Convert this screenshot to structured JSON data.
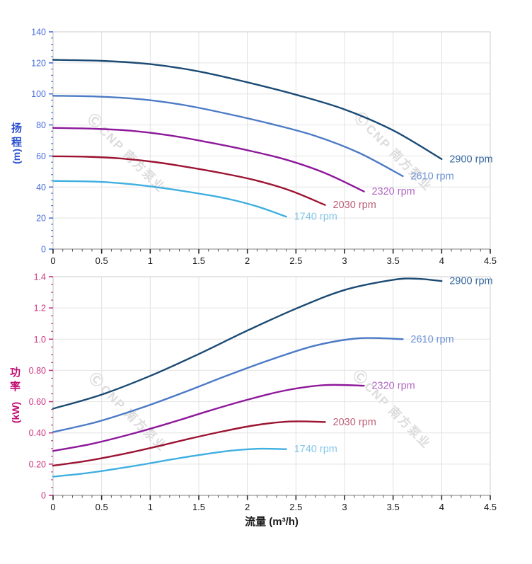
{
  "page": {
    "background": "#ffffff"
  },
  "watermark": {
    "logo_glyph": "Ⓒ",
    "text": "CNP 南方泵业",
    "color": "#dcdcdc"
  },
  "chart_data": [
    {
      "id": "head-chart",
      "type": "line",
      "title": "",
      "ylabel": "扬程",
      "ylabel_unit": "(m)",
      "xlabel": "",
      "xlim": [
        0,
        4.5
      ],
      "ylim": [
        0,
        140
      ],
      "grid": true,
      "legend_position": "curve-end-labels",
      "axis_tick_color": "#4a6fd9",
      "ylabel_color": "#2b50d2",
      "x_ticks": {
        "values": [
          0,
          0.5,
          1,
          1.5,
          2,
          2.5,
          3,
          3.5,
          4,
          4.5
        ],
        "labels": [
          "0",
          "0.5",
          "1",
          "1.5",
          "2",
          "2.5",
          "3",
          "3.5",
          "4",
          "4.5"
        ],
        "minor_step": 0.1
      },
      "y_ticks": {
        "values": [
          0,
          20,
          40,
          60,
          80,
          100,
          120,
          140
        ],
        "labels": [
          "0",
          "20",
          "40",
          "60",
          "80",
          "100",
          "120",
          "140"
        ],
        "minor_step": 4
      },
      "series": [
        {
          "name": "2900 rpm",
          "color": "#1b4a74",
          "label_color": "#35689e",
          "points": [
            [
              0,
              122
            ],
            [
              0.5,
              121.3
            ],
            [
              1,
              119.2
            ],
            [
              1.5,
              114.5
            ],
            [
              2,
              107.5
            ],
            [
              2.5,
              99.5
            ],
            [
              3,
              90
            ],
            [
              3.5,
              76.5
            ],
            [
              4,
              58
            ]
          ]
        },
        {
          "name": "2610 rpm",
          "color": "#4c7ac5",
          "label_color": "#6e93d6",
          "points": [
            [
              0,
              98.8
            ],
            [
              0.45,
              98.3
            ],
            [
              0.9,
              96.6
            ],
            [
              1.35,
              92.8
            ],
            [
              1.8,
              87.1
            ],
            [
              2.25,
              80.6
            ],
            [
              2.7,
              72.9
            ],
            [
              3.15,
              62
            ],
            [
              3.6,
              47
            ]
          ]
        },
        {
          "name": "2320 rpm",
          "color": "#8d189a",
          "label_color": "#b167c3",
          "points": [
            [
              0,
              78.1
            ],
            [
              0.4,
              77.6
            ],
            [
              0.8,
              76.3
            ],
            [
              1.2,
              73.3
            ],
            [
              1.6,
              68.8
            ],
            [
              2,
              63.7
            ],
            [
              2.4,
              57.6
            ],
            [
              2.8,
              49
            ],
            [
              3.2,
              37.1
            ]
          ]
        },
        {
          "name": "2030 rpm",
          "color": "#9c1432",
          "label_color": "#bd5f77",
          "points": [
            [
              0,
              59.8
            ],
            [
              0.35,
              59.5
            ],
            [
              0.7,
              58.4
            ],
            [
              1.05,
              56.1
            ],
            [
              1.4,
              52.7
            ],
            [
              1.75,
              48.8
            ],
            [
              2.1,
              44.1
            ],
            [
              2.45,
              37.5
            ],
            [
              2.8,
              28.4
            ]
          ]
        },
        {
          "name": "1740 rpm",
          "color": "#3fafe0",
          "label_color": "#85c7ea",
          "points": [
            [
              0,
              43.9
            ],
            [
              0.3,
              43.7
            ],
            [
              0.6,
              42.9
            ],
            [
              0.9,
              41.2
            ],
            [
              1.2,
              38.7
            ],
            [
              1.5,
              35.8
            ],
            [
              1.8,
              32.4
            ],
            [
              2.1,
              27.5
            ],
            [
              2.4,
              20.9
            ]
          ]
        }
      ]
    },
    {
      "id": "power-chart",
      "type": "line",
      "title": "",
      "ylabel": "功率",
      "ylabel_unit": "(kW)",
      "xlabel": "流量 (m³/h)",
      "xlim": [
        0,
        4.5
      ],
      "ylim": [
        0,
        1.4
      ],
      "grid": true,
      "legend_position": "curve-end-labels",
      "axis_tick_color": "#cc3380",
      "ylabel_color": "#bf0d72",
      "x_ticks": {
        "values": [
          0,
          0.5,
          1,
          1.5,
          2,
          2.5,
          3,
          3.5,
          4,
          4.5
        ],
        "labels": [
          "0",
          "0.5",
          "1",
          "1.5",
          "2",
          "2.5",
          "3",
          "3.5",
          "4",
          "4.5"
        ],
        "minor_step": 0.1
      },
      "y_ticks": {
        "values": [
          0,
          0.2,
          0.4,
          0.6,
          0.8,
          1.0,
          1.2,
          1.4
        ],
        "labels": [
          "0",
          "0.20",
          "0.40",
          "0.60",
          "0.80",
          "1.0",
          "1.2",
          "1.4"
        ],
        "minor_step": 0.05
      },
      "series": [
        {
          "name": "2900 rpm",
          "color": "#1b4a74",
          "label_color": "#35689e",
          "points": [
            [
              0,
              0.555
            ],
            [
              0.5,
              0.645
            ],
            [
              1,
              0.765
            ],
            [
              1.5,
              0.905
            ],
            [
              2,
              1.055
            ],
            [
              2.5,
              1.195
            ],
            [
              3,
              1.315
            ],
            [
              3.5,
              1.38
            ],
            [
              3.75,
              1.387
            ],
            [
              4,
              1.372
            ]
          ]
        },
        {
          "name": "2610 rpm",
          "color": "#4c7ac5",
          "label_color": "#6e93d6",
          "points": [
            [
              0,
              0.405
            ],
            [
              0.45,
              0.47
            ],
            [
              0.9,
              0.558
            ],
            [
              1.35,
              0.66
            ],
            [
              1.8,
              0.769
            ],
            [
              2.25,
              0.871
            ],
            [
              2.7,
              0.959
            ],
            [
              3.15,
              1.006
            ],
            [
              3.6,
              1.0
            ]
          ]
        },
        {
          "name": "2320 rpm",
          "color": "#8d189a",
          "label_color": "#b167c3",
          "points": [
            [
              0,
              0.284
            ],
            [
              0.4,
              0.33
            ],
            [
              0.8,
              0.392
            ],
            [
              1.2,
              0.463
            ],
            [
              1.6,
              0.54
            ],
            [
              2,
              0.612
            ],
            [
              2.4,
              0.673
            ],
            [
              2.8,
              0.706
            ],
            [
              3.2,
              0.702
            ]
          ]
        },
        {
          "name": "2030 rpm",
          "color": "#9c1432",
          "label_color": "#bd5f77",
          "points": [
            [
              0,
              0.19
            ],
            [
              0.35,
              0.221
            ],
            [
              0.7,
              0.262
            ],
            [
              1.05,
              0.31
            ],
            [
              1.4,
              0.362
            ],
            [
              1.75,
              0.41
            ],
            [
              2.1,
              0.451
            ],
            [
              2.45,
              0.473
            ],
            [
              2.8,
              0.47
            ]
          ]
        },
        {
          "name": "1740 rpm",
          "color": "#3fafe0",
          "label_color": "#85c7ea",
          "points": [
            [
              0,
              0.12
            ],
            [
              0.3,
              0.139
            ],
            [
              0.6,
              0.165
            ],
            [
              0.9,
              0.195
            ],
            [
              1.2,
              0.228
            ],
            [
              1.5,
              0.258
            ],
            [
              1.8,
              0.284
            ],
            [
              2.1,
              0.298
            ],
            [
              2.4,
              0.296
            ]
          ]
        }
      ]
    }
  ]
}
